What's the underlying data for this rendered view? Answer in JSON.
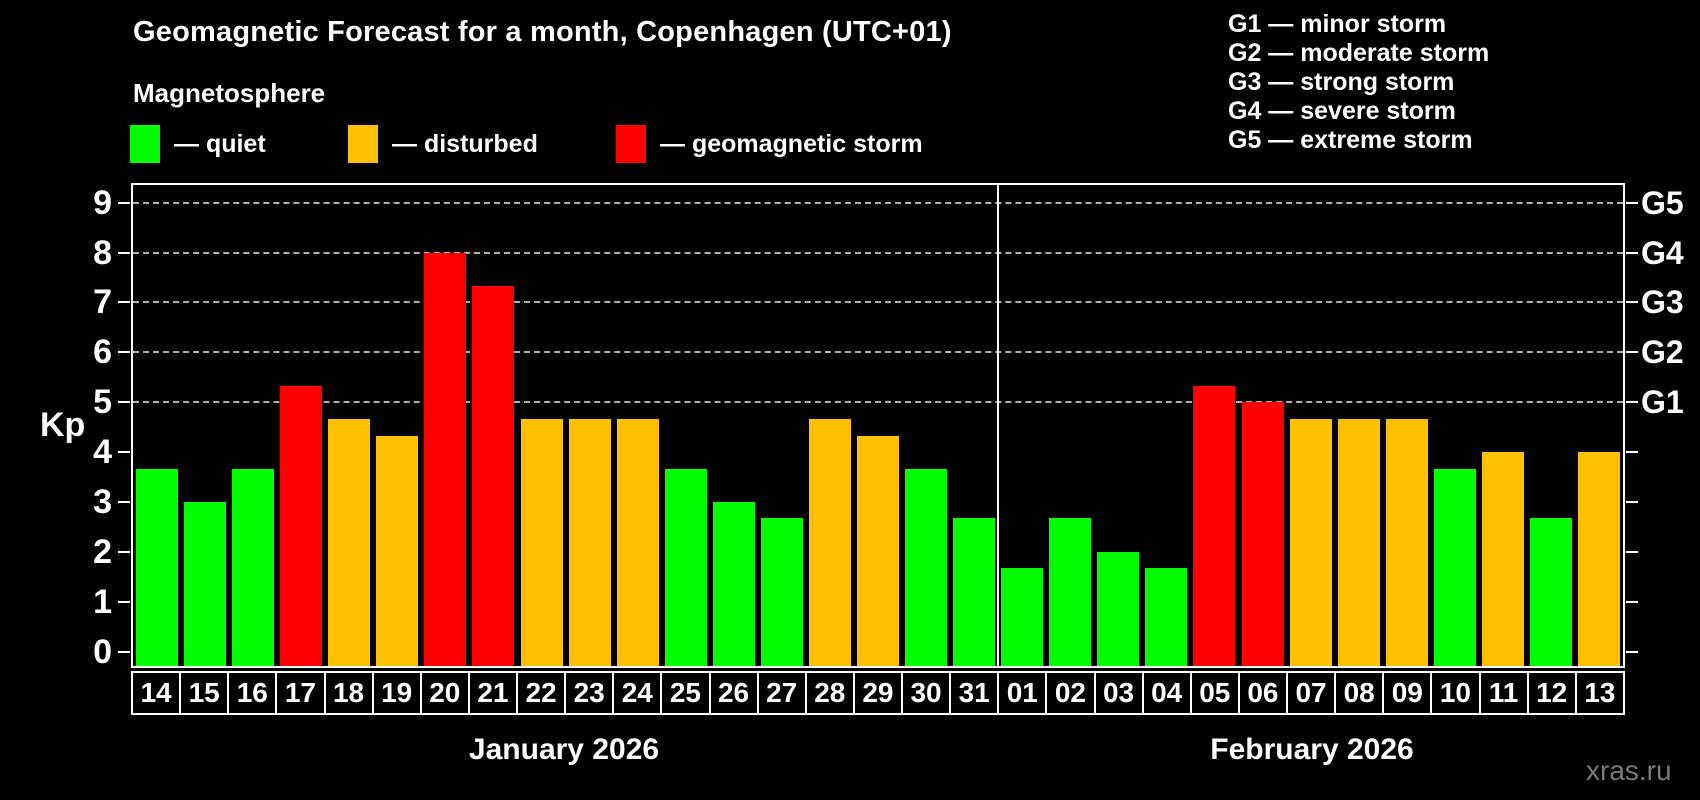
{
  "header": {
    "title": "Geomagnetic Forecast for a month, Copenhagen (UTC+01)",
    "subtitle": "Magnetosphere"
  },
  "legend": {
    "items": [
      {
        "label": "— quiet",
        "status": "quiet"
      },
      {
        "label": "— disturbed",
        "status": "disturbed"
      },
      {
        "label": "— geomagnetic storm",
        "status": "storm"
      }
    ]
  },
  "storm_scale": {
    "items": [
      "G1 — minor storm",
      "G2 — moderate storm",
      "G3 — strong storm",
      "G4 — severe storm",
      "G5 — extreme storm"
    ]
  },
  "axis": {
    "y_label": "Kp",
    "y_ticks": [
      0,
      1,
      2,
      3,
      4,
      5,
      6,
      7,
      8,
      9
    ]
  },
  "months": [
    {
      "name": "January 2026",
      "day_count": 18
    },
    {
      "name": "February 2026",
      "day_count": 13
    }
  ],
  "watermark": "xras.ru",
  "chart_data": {
    "type": "bar",
    "title": "Geomagnetic Forecast for a month, Copenhagen (UTC+01)",
    "subtitle": "Magnetosphere",
    "xlabel": "",
    "ylabel": "Kp",
    "ylim": [
      0,
      9
    ],
    "grid": true,
    "gridlines_at": [
      5,
      6,
      7,
      8,
      9
    ],
    "right_axis_labels": [
      {
        "label": "G1",
        "kp": 5
      },
      {
        "label": "G2",
        "kp": 6
      },
      {
        "label": "G3",
        "kp": 7
      },
      {
        "label": "G4",
        "kp": 8
      },
      {
        "label": "G5",
        "kp": 9
      }
    ],
    "color_map": {
      "quiet": "#00FF00",
      "disturbed": "#FFC000",
      "storm": "#FF0000"
    },
    "gridline_color": "#b0b0b0",
    "categories": [
      "Jan 14",
      "Jan 15",
      "Jan 16",
      "Jan 17",
      "Jan 18",
      "Jan 19",
      "Jan 20",
      "Jan 21",
      "Jan 22",
      "Jan 23",
      "Jan 24",
      "Jan 25",
      "Jan 26",
      "Jan 27",
      "Jan 28",
      "Jan 29",
      "Jan 30",
      "Jan 31",
      "Feb 01",
      "Feb 02",
      "Feb 03",
      "Feb 04",
      "Feb 05",
      "Feb 06",
      "Feb 07",
      "Feb 08",
      "Feb 09",
      "Feb 10",
      "Feb 11",
      "Feb 12",
      "Feb 13"
    ],
    "day_labels": [
      "14",
      "15",
      "16",
      "17",
      "18",
      "19",
      "20",
      "21",
      "22",
      "23",
      "24",
      "25",
      "26",
      "27",
      "28",
      "29",
      "30",
      "31",
      "01",
      "02",
      "03",
      "04",
      "05",
      "06",
      "07",
      "08",
      "09",
      "10",
      "11",
      "12",
      "13"
    ],
    "values": [
      3.67,
      3,
      3.67,
      5.33,
      4.67,
      4.33,
      8,
      7.33,
      4.67,
      4.67,
      4.67,
      3.67,
      3,
      2.67,
      4.67,
      4.33,
      3.67,
      2.67,
      1.67,
      2.67,
      2,
      1.67,
      5.33,
      5,
      4.67,
      4.67,
      4.67,
      3.67,
      4,
      2.67,
      4
    ],
    "statuses": [
      "quiet",
      "quiet",
      "quiet",
      "storm",
      "disturbed",
      "disturbed",
      "storm",
      "storm",
      "disturbed",
      "disturbed",
      "disturbed",
      "quiet",
      "quiet",
      "quiet",
      "disturbed",
      "disturbed",
      "quiet",
      "quiet",
      "quiet",
      "quiet",
      "quiet",
      "quiet",
      "storm",
      "storm",
      "disturbed",
      "disturbed",
      "disturbed",
      "quiet",
      "disturbed",
      "quiet",
      "disturbed"
    ]
  }
}
